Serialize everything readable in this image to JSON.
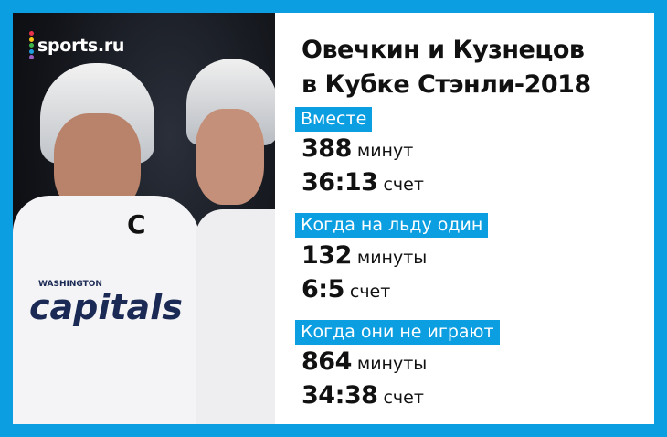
{
  "brand": {
    "logo_text": "sports.ru",
    "dot_colors": [
      "#e8334a",
      "#f5c518",
      "#3fb54a",
      "#1e9fe0",
      "#9b5fc0"
    ]
  },
  "colors": {
    "accent": "#0b9ee0",
    "text": "#111111"
  },
  "title": {
    "line1": "Овечкин и Кузнецов",
    "line2": "в Кубке Стэнли-2018"
  },
  "sections": [
    {
      "label": "Вместе",
      "minutes": "388",
      "minutes_unit": "минут",
      "score": "36:13",
      "score_unit": "счет"
    },
    {
      "label": "Когда на льду один",
      "minutes": "132",
      "minutes_unit": "минуты",
      "score": "6:5",
      "score_unit": "счет"
    },
    {
      "label": "Когда они не играют",
      "minutes": "864",
      "minutes_unit": "минуты",
      "score": "34:38",
      "score_unit": "счет"
    }
  ],
  "photo": {
    "jersey_text": "capitals",
    "jersey_subtext": "WASHINGTON",
    "captain_letter": "C"
  }
}
